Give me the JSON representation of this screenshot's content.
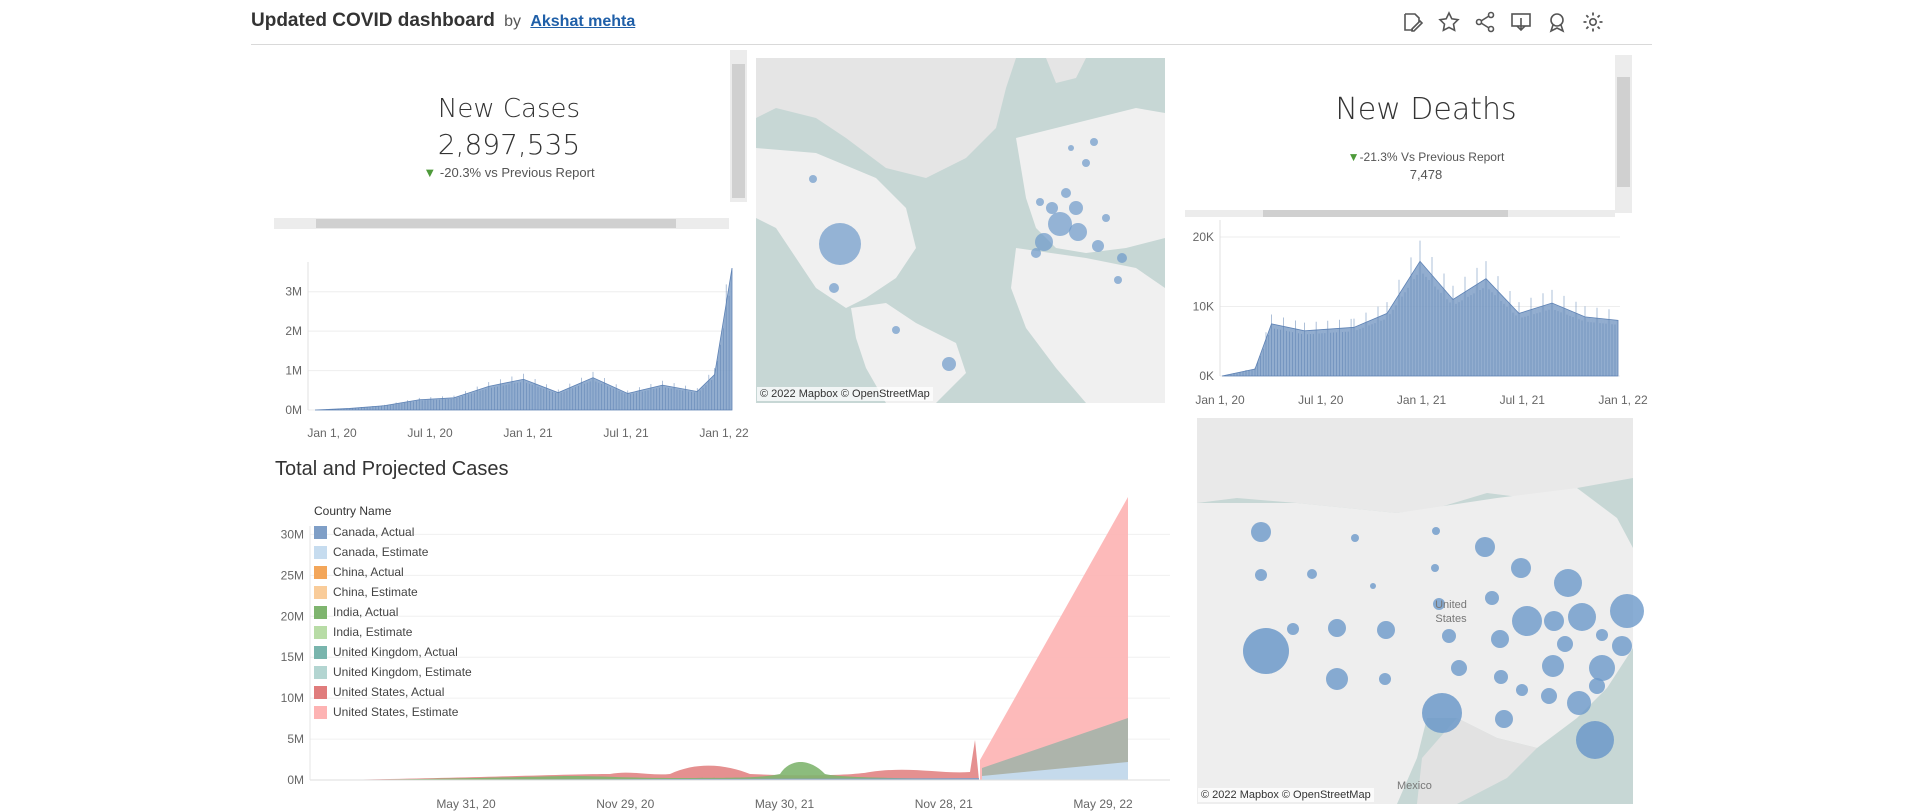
{
  "header": {
    "title": "Updated COVID dashboard",
    "by": "by",
    "author": "Akshat mehta",
    "toolbar": [
      "edit-icon",
      "star-icon",
      "share-icon",
      "download-icon",
      "badge-icon",
      "settings-icon"
    ]
  },
  "new_cases": {
    "title": "New Cases",
    "value": "2,897,535",
    "change": "-20.3%",
    "change_suffix": "vs Previous Report",
    "arrow": "▼",
    "arrow_color": "#4e9a3a"
  },
  "new_deaths": {
    "title": "New Deaths",
    "change": "-21.3%",
    "change_suffix": "Vs Previous Report",
    "arrow": "▼",
    "value": "7,478"
  },
  "map_attribution": "© 2022 Mapbox  © OpenStreetMap",
  "us_map_label": "United States",
  "us_map_mexico": "Mexico",
  "colors": {
    "area_blue": "#7f9fc7",
    "map_bubble": "#6c99c9",
    "map_water": "#c7d7d5",
    "map_land": "#f0f0f0"
  },
  "chart_data": [
    {
      "type": "area",
      "name_ref": "new-cases-timeline",
      "x_ticks": [
        "Jan 1, 20",
        "Jul 1, 20",
        "Jan 1, 21",
        "Jul 1, 21",
        "Jan 1, 22"
      ],
      "y_ticks": [
        "0M",
        "1M",
        "2M",
        "3M"
      ],
      "ylim": [
        0,
        3500000
      ],
      "x": [
        "2020-01",
        "2020-03",
        "2020-05",
        "2020-07",
        "2020-09",
        "2020-11",
        "2021-01",
        "2021-03",
        "2021-05",
        "2021-07",
        "2021-09",
        "2021-11",
        "2021-12",
        "2022-01"
      ],
      "values": [
        0,
        40000,
        110000,
        260000,
        310000,
        600000,
        780000,
        440000,
        820000,
        420000,
        630000,
        470000,
        900000,
        3600000
      ]
    },
    {
      "type": "area",
      "name_ref": "new-deaths-timeline",
      "x_ticks": [
        "Jan 1, 20",
        "Jul 1, 20",
        "Jan 1, 21",
        "Jul 1, 21",
        "Jan 1, 22"
      ],
      "y_ticks": [
        "0K",
        "10K",
        "20K"
      ],
      "ylim": [
        0,
        21000
      ],
      "x": [
        "2020-01",
        "2020-03",
        "2020-04",
        "2020-06",
        "2020-09",
        "2020-11",
        "2021-01",
        "2021-03",
        "2021-05",
        "2021-07",
        "2021-09",
        "2021-11",
        "2022-01"
      ],
      "values": [
        0,
        1000,
        7500,
        6500,
        7000,
        9000,
        16500,
        11000,
        14000,
        9000,
        10500,
        8500,
        8000
      ]
    },
    {
      "type": "area",
      "title": "Total and Projected Cases",
      "legend_title": "Country Name",
      "x_ticks": [
        "May 31, 20",
        "Nov 29, 20",
        "May 30, 21",
        "Nov 28, 21",
        "May 29, 22"
      ],
      "y_ticks": [
        "0M",
        "5M",
        "10M",
        "15M",
        "20M",
        "25M",
        "30M"
      ],
      "ylim": [
        0,
        32000000
      ],
      "series": [
        {
          "name": "Canada, Actual",
          "color": "#7f9fc7"
        },
        {
          "name": "Canada, Estimate",
          "color": "#c6dcef"
        },
        {
          "name": "China, Actual",
          "color": "#f3a65a"
        },
        {
          "name": "China, Estimate",
          "color": "#f9cc9a"
        },
        {
          "name": "India, Actual",
          "color": "#7fb56f"
        },
        {
          "name": "India, Estimate",
          "color": "#b8dca6"
        },
        {
          "name": "United Kingdom, Actual",
          "color": "#79b5ad"
        },
        {
          "name": "United Kingdom, Estimate",
          "color": "#b3d5d1"
        },
        {
          "name": "United States, Actual",
          "color": "#e07c7c"
        },
        {
          "name": "United States, Estimate",
          "color": "#fdb3b3"
        }
      ]
    }
  ]
}
